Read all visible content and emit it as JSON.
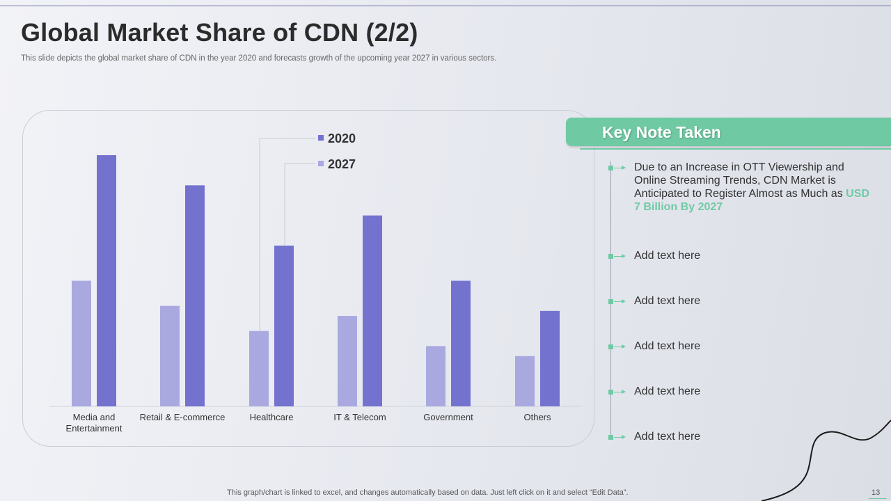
{
  "slide": {
    "title": "Global Market Share of CDN (2/2)",
    "subtitle": "This slide depicts the global market share of CDN in the year 2020 and forecasts growth of the upcoming year 2027 in various sectors.",
    "footer": "This graph/chart is linked to excel, and changes automatically based on data. Just left click on it and select “Edit Data”.",
    "page_number": "13"
  },
  "colors": {
    "series_2020": "#7472cf",
    "series_2027": "#a9a9e0",
    "accent": "#6fcaa4"
  },
  "chart_data": {
    "type": "bar",
    "title": "",
    "xlabel": "",
    "ylabel": "",
    "ylim": [
      0,
      100
    ],
    "grid": false,
    "legend_position": "top-center",
    "categories": [
      "Media and Entertainment",
      "Retail & E-commerce",
      "Healthcare",
      "IT & Telecom",
      "Government",
      "Others"
    ],
    "category_lines": [
      [
        "Media and",
        "Entertainment"
      ],
      [
        "Retail & E-commerce"
      ],
      [
        "Healthcare"
      ],
      [
        "IT & Telecom"
      ],
      [
        "Government"
      ],
      [
        "Others"
      ]
    ],
    "series": [
      {
        "name": "2027",
        "values": [
          50,
          40,
          30,
          36,
          24,
          20
        ]
      },
      {
        "name": "2020",
        "values": [
          100,
          88,
          64,
          76,
          50,
          38
        ]
      }
    ],
    "legend": [
      "2020",
      "2027"
    ]
  },
  "key_note": {
    "title": "Key Note Taken",
    "main_note": {
      "lines": [
        "Due to an Increase in OTT Viewership and",
        "Online Streaming Trends, CDN Market is",
        "Anticipated to Register Almost as Much as"
      ],
      "highlight_a": "USD",
      "highlight_b": "7 Billion By 2027"
    },
    "items": [
      "Add text here",
      "Add text here",
      "Add text here",
      "Add text here",
      "Add text here"
    ]
  }
}
